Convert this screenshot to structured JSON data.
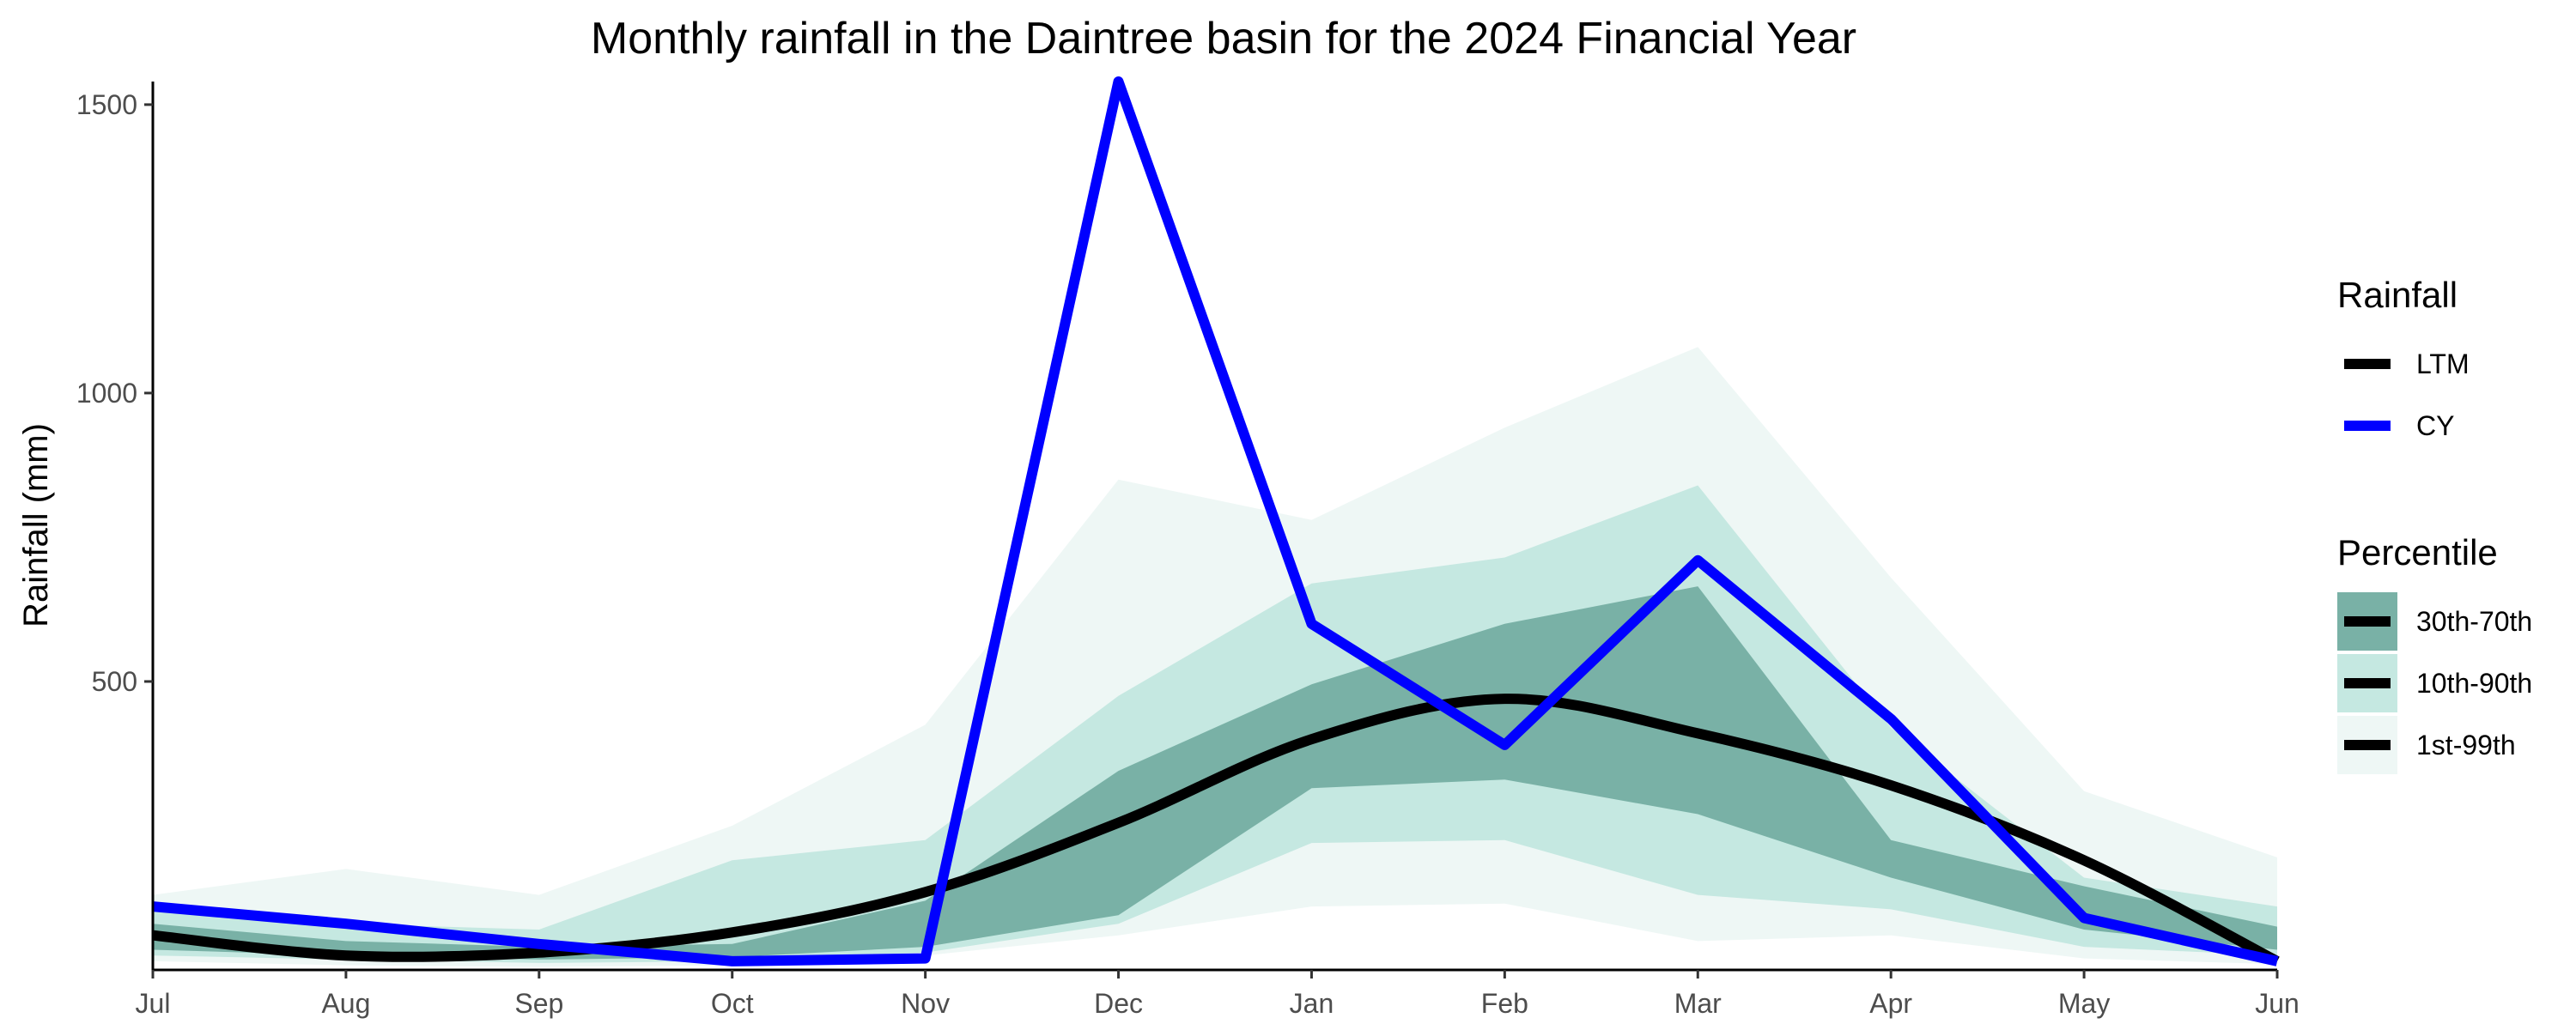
{
  "chart_data": {
    "type": "area",
    "title": "Monthly rainfall in the Daintree basin for the 2024 Financial Year",
    "xlabel": "",
    "ylabel": "Rainfall (mm)",
    "categories": [
      "Jul",
      "Aug",
      "Sep",
      "Oct",
      "Nov",
      "Dec",
      "Jan",
      "Feb",
      "Mar",
      "Apr",
      "May",
      "Jun"
    ],
    "ylim": [
      0,
      1540
    ],
    "yticks": [
      500,
      1000,
      1500
    ],
    "grid": false,
    "legend_position": "right",
    "legend": {
      "rainfall_title": "Rainfall",
      "percentile_title": "Percentile",
      "rainfall_items": [
        "LTM",
        "CY"
      ],
      "percentile_items": [
        "30th-70th",
        "10th-90th",
        "1st-99th"
      ]
    },
    "colors": {
      "ltm": "#000000",
      "cy": "#0000ff",
      "band_30_70": "#79b1a6",
      "band_10_90": "#c5e8e1",
      "band_1_99": "#eef7f5"
    },
    "bands": [
      {
        "name": "1st-99th",
        "low": [
          15,
          8,
          5,
          8,
          25,
          60,
          110,
          115,
          50,
          60,
          20,
          10
        ],
        "high": [
          130,
          175,
          130,
          250,
          425,
          850,
          780,
          940,
          1080,
          680,
          310,
          195
        ]
      },
      {
        "name": "10th-90th",
        "low": [
          25,
          18,
          12,
          15,
          30,
          80,
          220,
          225,
          130,
          105,
          40,
          25
        ],
        "high": [
          110,
          80,
          70,
          190,
          225,
          475,
          670,
          715,
          840,
          420,
          160,
          110
        ]
      },
      {
        "name": "30th-70th",
        "low": [
          35,
          25,
          18,
          22,
          40,
          95,
          315,
          330,
          270,
          160,
          70,
          35
        ],
        "high": [
          80,
          50,
          40,
          45,
          120,
          345,
          495,
          600,
          665,
          225,
          145,
          75
        ]
      }
    ],
    "series": [
      {
        "name": "LTM",
        "values": [
          60,
          25,
          30,
          65,
          135,
          255,
          400,
          470,
          410,
          320,
          190,
          15
        ]
      },
      {
        "name": "CY",
        "values": [
          110,
          80,
          45,
          15,
          20,
          1540,
          600,
          390,
          710,
          435,
          90,
          15
        ]
      }
    ]
  }
}
